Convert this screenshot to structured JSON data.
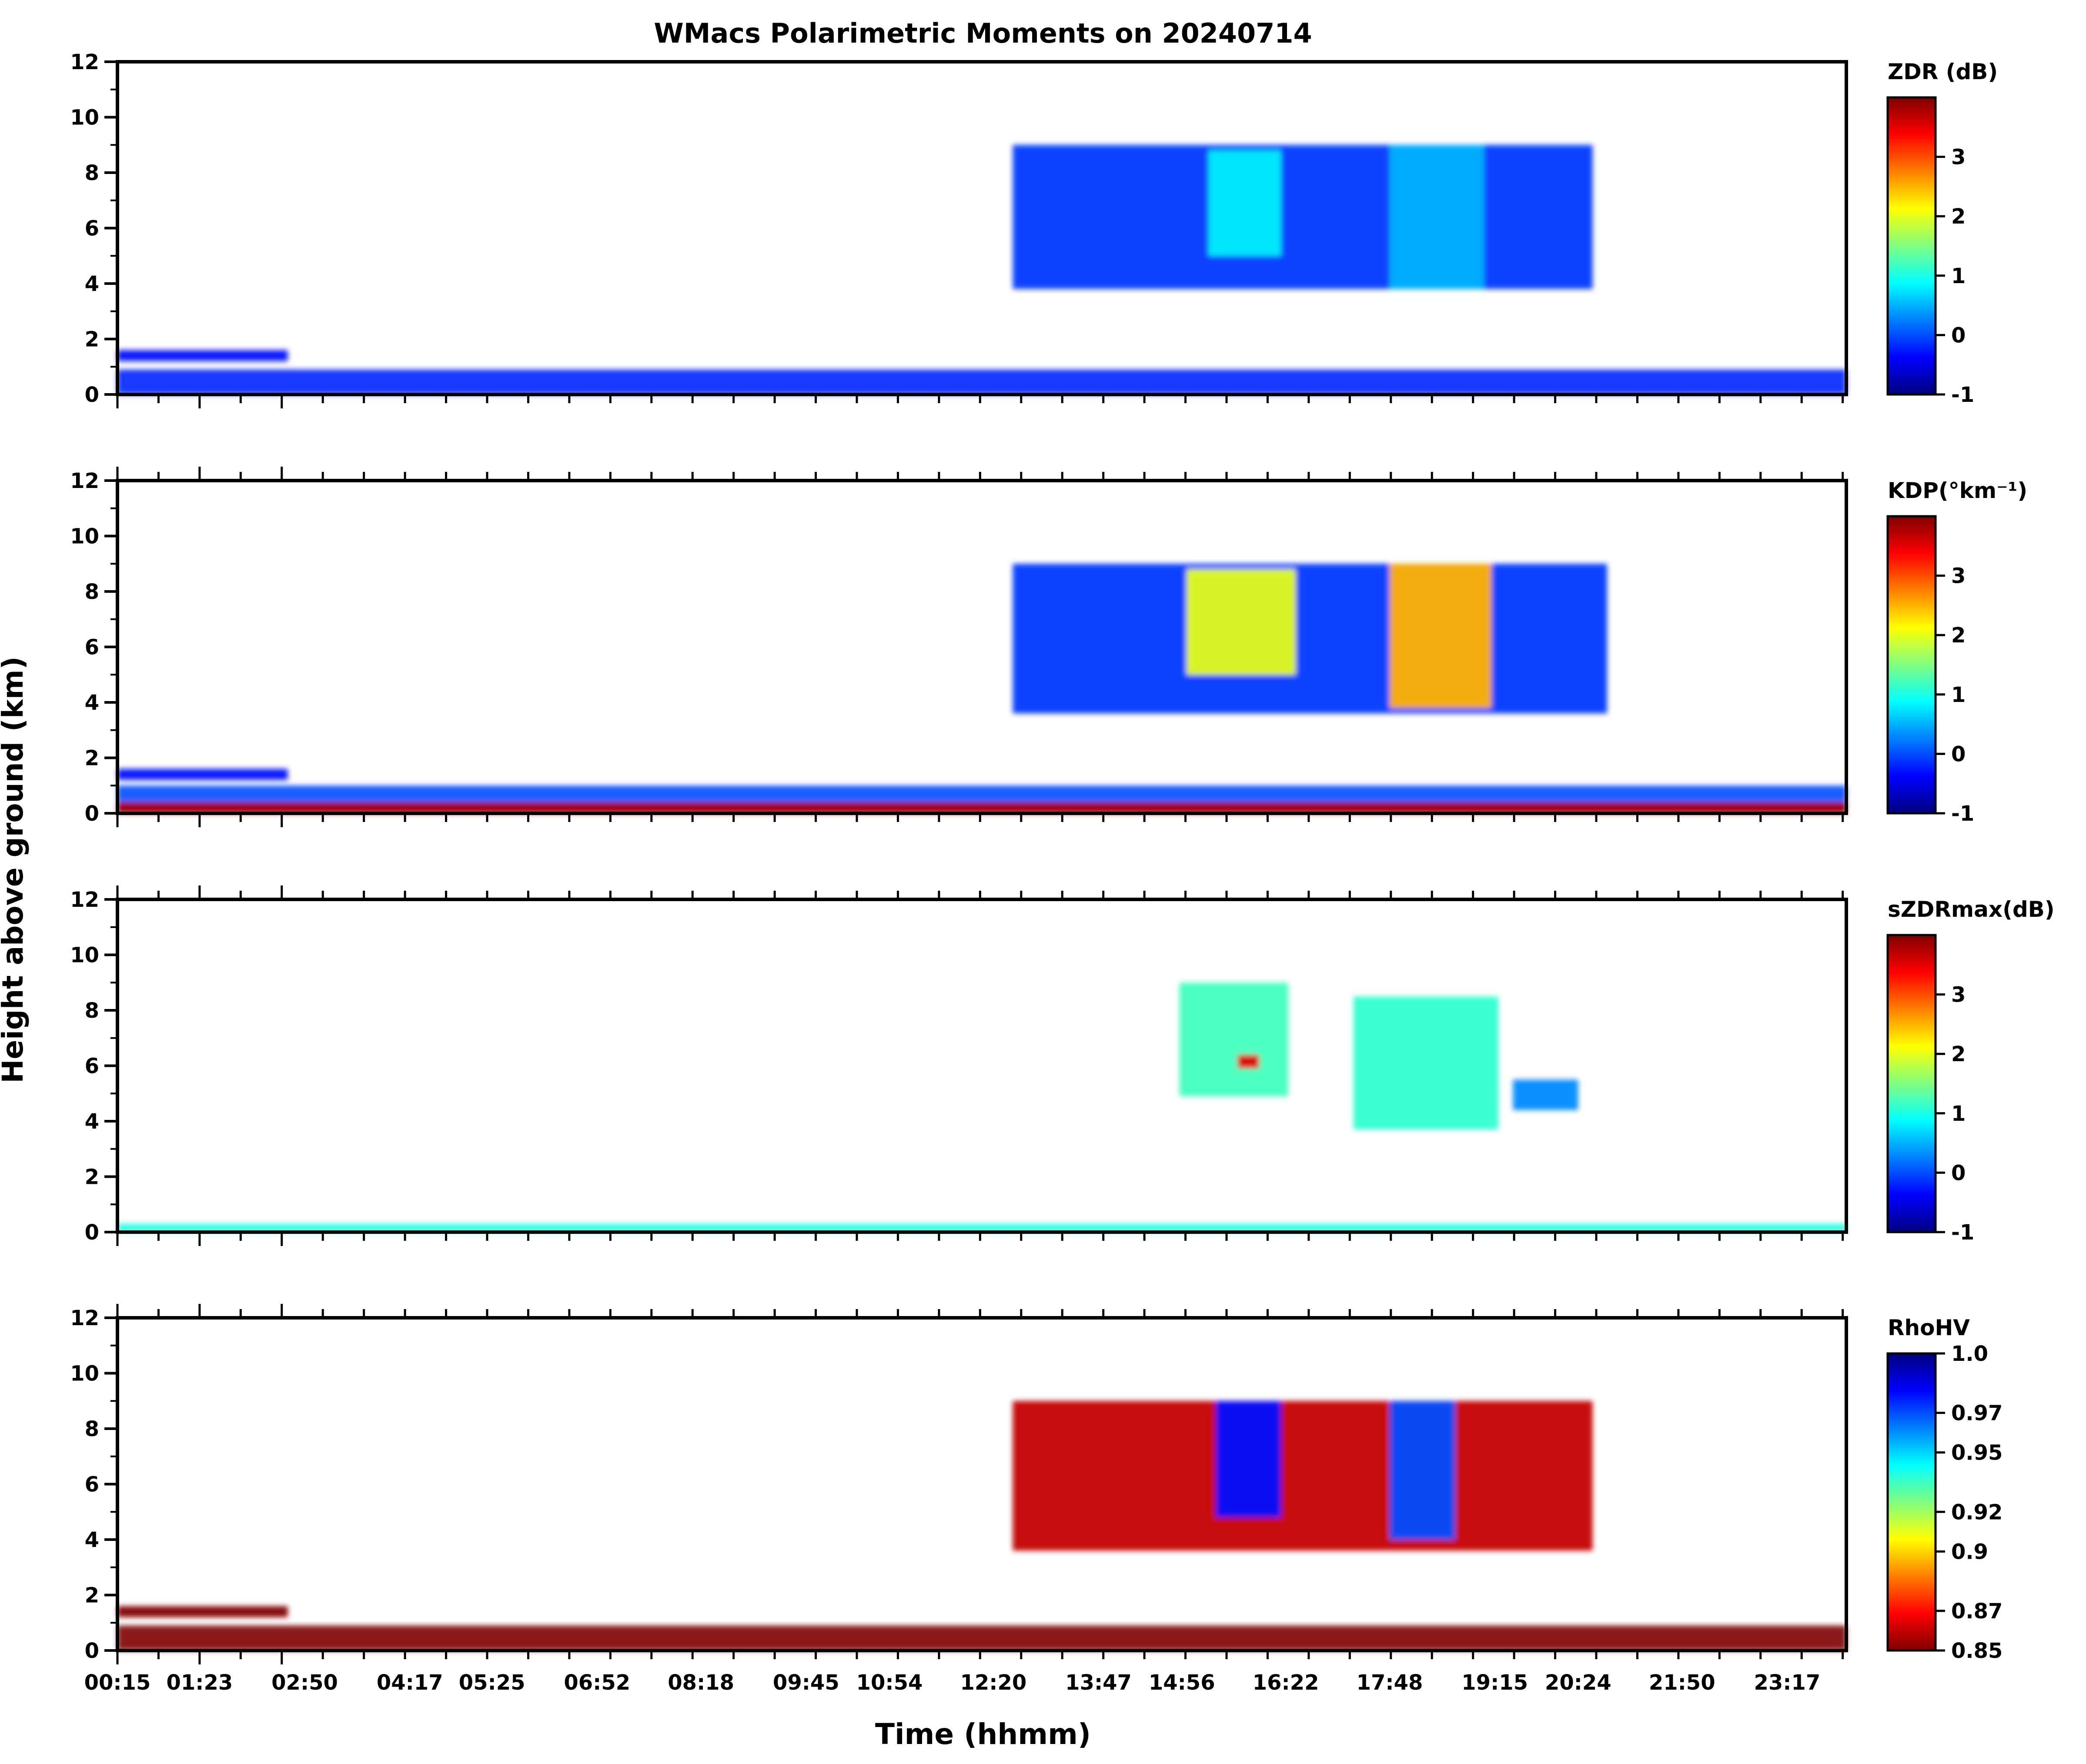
{
  "chart_data": {
    "type": "heatmap",
    "title": "WMacs Polarimetric Moments on 20240714",
    "xlabel": "Time (hhmm)",
    "ylabel": "Height above ground (km)",
    "x_tick_labels": [
      "00:15",
      "01:23",
      "02:50",
      "04:17",
      "05:25",
      "06:52",
      "08:18",
      "09:45",
      "10:54",
      "12:20",
      "13:47",
      "14:56",
      "16:22",
      "17:48",
      "19:15",
      "20:24",
      "21:50",
      "23:17"
    ],
    "x_range_hours": [
      0.25,
      24.1
    ],
    "y_ticks": [
      0,
      2,
      4,
      6,
      8,
      10,
      12
    ],
    "y_ticks_text": [
      "0",
      "2",
      "4",
      "6",
      "8",
      "10",
      "12"
    ],
    "ylim": [
      0,
      12
    ],
    "panels": [
      {
        "variable": "ZDR",
        "colorbar_label": "ZDR (dB)",
        "colorbar_range": [
          -1,
          4
        ],
        "colorbar_ticks": [
          -1,
          0,
          1,
          2,
          3
        ],
        "colorbar_ticks_text": [
          "-1",
          "0",
          "1",
          "2",
          "3"
        ],
        "colormap": "jet",
        "features": [
          {
            "name": "boundary-layer echo",
            "t_start": 0.25,
            "t_end": 24.1,
            "h_min": 0.0,
            "h_max": 0.9,
            "value": -0.2
          },
          {
            "name": "early low cloud layer",
            "t_start": 0.25,
            "t_end": 2.6,
            "h_min": 1.2,
            "h_max": 1.6,
            "value": -0.3
          },
          {
            "name": "upper anvil echo",
            "t_start": 12.6,
            "t_end": 20.6,
            "h_min": 3.8,
            "h_max": 9.0,
            "value": -0.1
          },
          {
            "name": "convective core A",
            "t_start": 15.3,
            "t_end": 16.3,
            "h_min": 5.0,
            "h_max": 8.8,
            "value": 0.8
          },
          {
            "name": "convective core B",
            "t_start": 17.8,
            "t_end": 19.1,
            "h_min": 3.8,
            "h_max": 9.0,
            "value": 0.5
          }
        ]
      },
      {
        "variable": "KDP",
        "colorbar_label": "KDP(°km⁻¹)",
        "colorbar_range": [
          -1,
          4
        ],
        "colorbar_ticks": [
          -1,
          0,
          1,
          2,
          3
        ],
        "colorbar_ticks_text": [
          "-1",
          "0",
          "1",
          "2",
          "3"
        ],
        "colormap": "jet",
        "features": [
          {
            "name": "boundary-layer echo",
            "t_start": 0.25,
            "t_end": 24.1,
            "h_min": 0.0,
            "h_max": 1.0,
            "value": 0.0
          },
          {
            "name": "near-surface high KDP",
            "t_start": 0.25,
            "t_end": 24.1,
            "h_min": 0.0,
            "h_max": 0.4,
            "value": 3.8
          },
          {
            "name": "early low cloud layer",
            "t_start": 0.25,
            "t_end": 2.6,
            "h_min": 1.2,
            "h_max": 1.6,
            "value": -0.3
          },
          {
            "name": "upper anvil echo",
            "t_start": 12.6,
            "t_end": 20.8,
            "h_min": 3.6,
            "h_max": 9.0,
            "value": -0.1
          },
          {
            "name": "convective core A",
            "t_start": 15.0,
            "t_end": 16.5,
            "h_min": 5.0,
            "h_max": 8.8,
            "value": 2.0
          },
          {
            "name": "convective core B",
            "t_start": 17.8,
            "t_end": 19.2,
            "h_min": 3.8,
            "h_max": 9.0,
            "value": 2.5
          }
        ]
      },
      {
        "variable": "sZDRmax",
        "colorbar_label": "sZDRmax(dB)",
        "colorbar_range": [
          -1,
          4
        ],
        "colorbar_ticks": [
          -1,
          0,
          1,
          2,
          3
        ],
        "colorbar_ticks_text": [
          "-1",
          "0",
          "1",
          "2",
          "3"
        ],
        "colormap": "jet",
        "features": [
          {
            "name": "surface speckle",
            "t_start": 0.25,
            "t_end": 24.1,
            "h_min": 0.0,
            "h_max": 0.3,
            "value": 1.0
          },
          {
            "name": "convective core A",
            "t_start": 14.9,
            "t_end": 16.4,
            "h_min": 4.9,
            "h_max": 9.0,
            "value": 1.2
          },
          {
            "name": "convective core B",
            "t_start": 17.3,
            "t_end": 19.3,
            "h_min": 3.7,
            "h_max": 8.5,
            "value": 1.1
          },
          {
            "name": "high-ZDR pocket",
            "t_start": 15.7,
            "t_end": 16.0,
            "h_min": 5.9,
            "h_max": 6.4,
            "value": 3.5
          },
          {
            "name": "trailing echo",
            "t_start": 19.5,
            "t_end": 20.4,
            "h_min": 4.4,
            "h_max": 5.5,
            "value": 0.3
          }
        ]
      },
      {
        "variable": "RhoHV",
        "colorbar_label": "RhoHV",
        "colorbar_range": [
          0.85,
          1.0
        ],
        "colorbar_ticks": [
          0.85,
          0.87,
          0.9,
          0.92,
          0.95,
          0.97,
          1.0
        ],
        "colorbar_ticks_text": [
          "0.85",
          "0.87",
          "0.9",
          "0.92",
          "0.95",
          "0.97",
          "1.0"
        ],
        "colormap": "jet_r",
        "features": [
          {
            "name": "boundary-layer echo",
            "t_start": 0.25,
            "t_end": 24.1,
            "h_min": 0.0,
            "h_max": 0.9,
            "value": 0.85
          },
          {
            "name": "early low cloud layer",
            "t_start": 0.25,
            "t_end": 2.6,
            "h_min": 1.2,
            "h_max": 1.6,
            "value": 0.85
          },
          {
            "name": "upper anvil echo",
            "t_start": 12.6,
            "t_end": 20.6,
            "h_min": 3.6,
            "h_max": 9.0,
            "value": 0.86
          },
          {
            "name": "convective core A",
            "t_start": 15.4,
            "t_end": 16.3,
            "h_min": 4.8,
            "h_max": 9.0,
            "value": 0.98
          },
          {
            "name": "convective core B",
            "t_start": 17.8,
            "t_end": 18.7,
            "h_min": 4.0,
            "h_max": 9.0,
            "value": 0.97
          }
        ]
      }
    ]
  }
}
